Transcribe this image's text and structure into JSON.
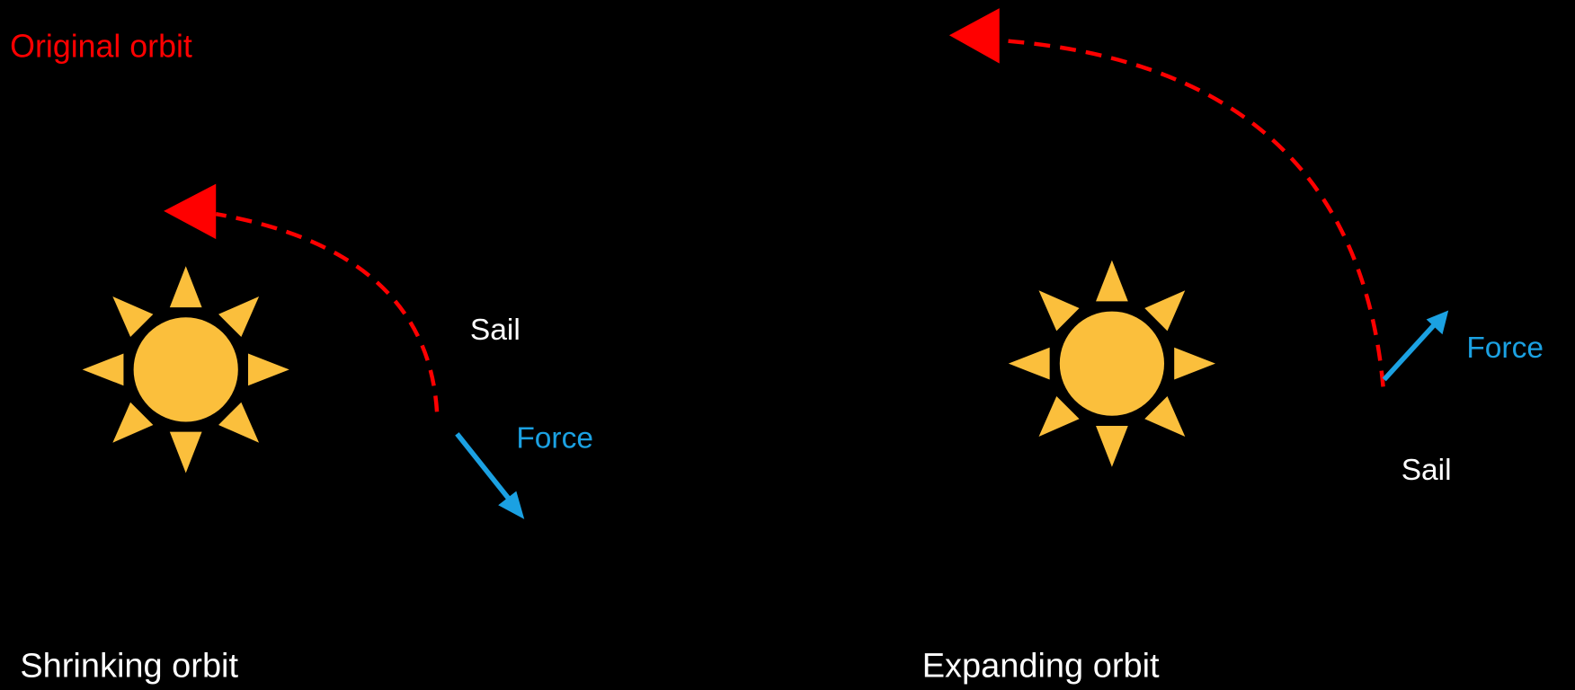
{
  "legend": {
    "label": "Original orbit"
  },
  "panels": [
    {
      "caption": "Shrinking orbit",
      "sail_label": "Sail",
      "force_label": "Force"
    },
    {
      "caption": "Expanding orbit",
      "sail_label": "Sail",
      "force_label": "Force"
    }
  ]
}
